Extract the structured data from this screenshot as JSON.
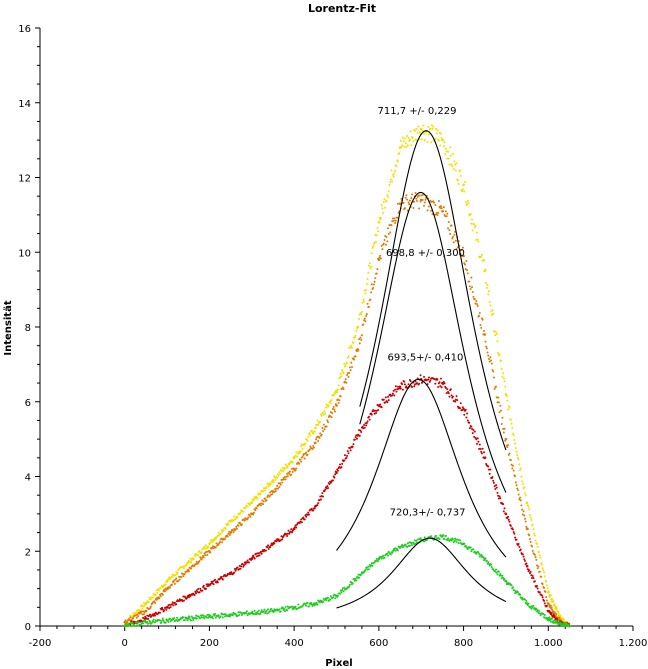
{
  "chart_data": {
    "type": "scatter",
    "title": "Lorentz-Fit",
    "xlabel": "Pixel",
    "ylabel": "Intensität",
    "xlim": [
      -200,
      1200
    ],
    "ylim": [
      0,
      16
    ],
    "x_ticks": [
      -200,
      0,
      200,
      400,
      600,
      800,
      1000,
      1200
    ],
    "x_tick_labels": [
      "-200",
      "0",
      "200",
      "400",
      "600",
      "800",
      "1.000",
      "1.200"
    ],
    "y_ticks": [
      0,
      2,
      4,
      6,
      8,
      10,
      12,
      14,
      16
    ],
    "y_tick_labels": [
      "0",
      "2",
      "4",
      "6",
      "8",
      "10",
      "12",
      "14",
      "16"
    ],
    "grid": false,
    "legend": "none",
    "series": [
      {
        "color": "#f0e000",
        "x": [
          0,
          50,
          100,
          150,
          200,
          250,
          300,
          350,
          400,
          450,
          500,
          550,
          600,
          650,
          700,
          750,
          800,
          850,
          900,
          950,
          1000,
          1030,
          1050
        ],
        "y": [
          0.1,
          0.6,
          1.2,
          1.7,
          2.2,
          2.8,
          3.3,
          3.9,
          4.5,
          5.3,
          6.3,
          8.0,
          10.8,
          12.8,
          13.3,
          13.0,
          11.8,
          9.5,
          6.2,
          3.3,
          0.9,
          0.2,
          0.0
        ]
      },
      {
        "color": "#e07a00",
        "x": [
          0,
          50,
          100,
          150,
          200,
          250,
          300,
          350,
          400,
          450,
          500,
          550,
          600,
          650,
          700,
          750,
          800,
          850,
          900,
          950,
          1000,
          1030,
          1050
        ],
        "y": [
          0.1,
          0.4,
          1.0,
          1.5,
          2.0,
          2.5,
          3.0,
          3.6,
          4.2,
          4.9,
          5.9,
          7.4,
          9.8,
          11.3,
          11.4,
          11.1,
          9.9,
          7.8,
          5.0,
          2.6,
          0.6,
          0.1,
          0.0
        ]
      },
      {
        "color": "#cc0000",
        "x": [
          0,
          50,
          100,
          150,
          200,
          250,
          300,
          350,
          400,
          450,
          500,
          550,
          600,
          650,
          700,
          750,
          800,
          850,
          900,
          950,
          1000,
          1030,
          1050
        ],
        "y": [
          0.0,
          0.2,
          0.5,
          0.8,
          1.1,
          1.4,
          1.8,
          2.2,
          2.6,
          3.2,
          4.1,
          5.1,
          5.9,
          6.4,
          6.6,
          6.5,
          5.8,
          4.5,
          3.0,
          1.6,
          0.4,
          0.05,
          0.0
        ]
      },
      {
        "color": "#22cc22",
        "x": [
          0,
          50,
          100,
          150,
          200,
          250,
          300,
          350,
          400,
          450,
          500,
          550,
          600,
          650,
          700,
          750,
          800,
          850,
          900,
          950,
          1000,
          1030,
          1050
        ],
        "y": [
          0.0,
          0.1,
          0.15,
          0.2,
          0.25,
          0.3,
          0.35,
          0.4,
          0.5,
          0.6,
          0.8,
          1.3,
          1.8,
          2.1,
          2.3,
          2.4,
          2.2,
          1.8,
          1.2,
          0.6,
          0.2,
          0.05,
          0.0
        ]
      }
    ],
    "fits": [
      {
        "center": 711.7,
        "peak": 13.25,
        "gamma": 250,
        "x_range": [
          555,
          900
        ],
        "color": "#000000"
      },
      {
        "center": 698.8,
        "peak": 11.6,
        "gamma": 240,
        "x_range": [
          555,
          900
        ],
        "color": "#000000"
      },
      {
        "center": 693.5,
        "peak": 6.6,
        "gamma": 230,
        "x_range": [
          500,
          900
        ],
        "color": "#000000"
      },
      {
        "center": 720.3,
        "peak": 2.35,
        "gamma": 200,
        "x_range": [
          500,
          900
        ],
        "color": "#000000"
      }
    ],
    "annotations": [
      {
        "text": "711,7 +/- 0,229",
        "x": 690,
        "y": 13.7
      },
      {
        "text": "698,8 +/- 0,300",
        "x": 710,
        "y": 9.9
      },
      {
        "text": "693,5+/- 0,410",
        "x": 710,
        "y": 7.1
      },
      {
        "text": "720,3+/- 0,737",
        "x": 715,
        "y": 2.95
      }
    ]
  }
}
